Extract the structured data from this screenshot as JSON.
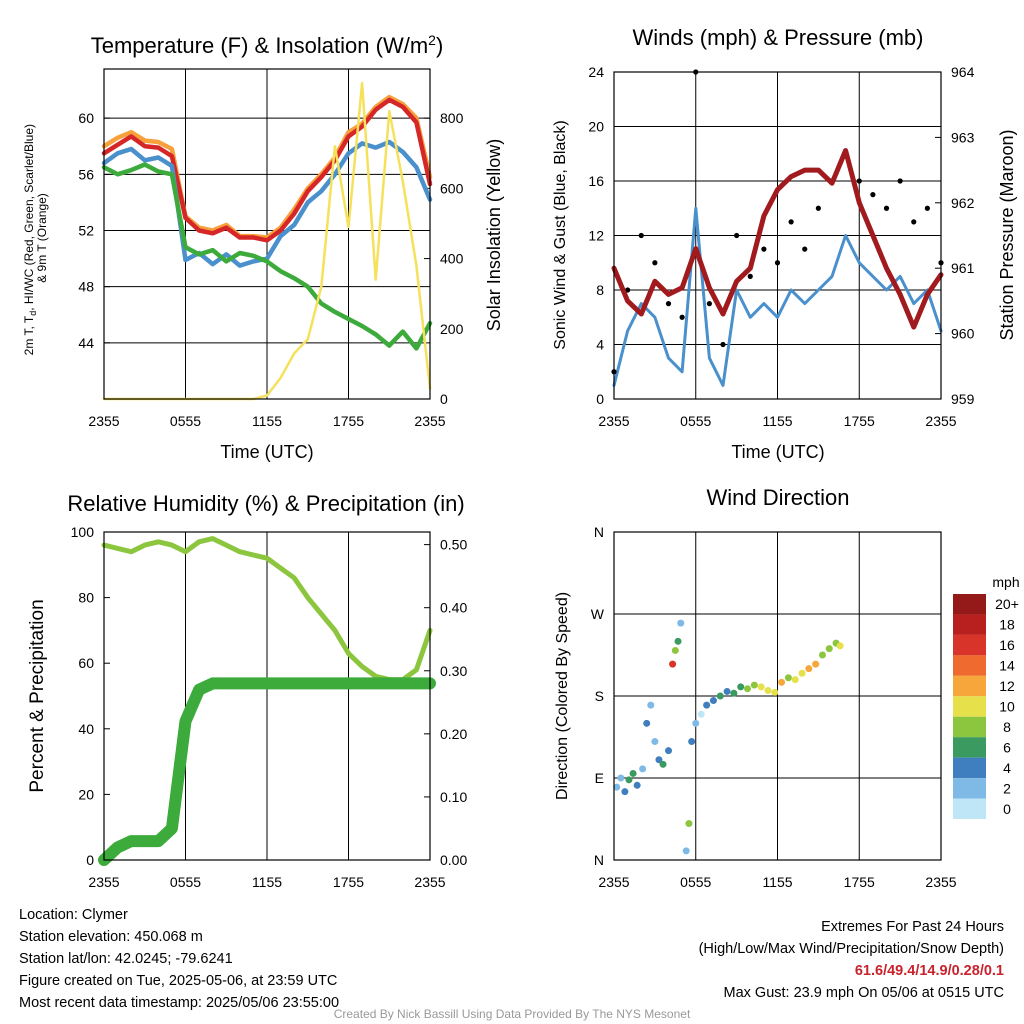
{
  "chart_data": [
    {
      "type": "line",
      "title": "Temperature (F) & Insolation (W/m²)",
      "xlabel": "Time (UTC)",
      "ylabel": "2m T, T_d, HI/WC (Red, Green, Scarlet/Blue) & 9m T (Orange)",
      "ylabel2": "Solar Insolation (Yellow)",
      "ylim": [
        40,
        63.5
      ],
      "ylim2": [
        0,
        940
      ],
      "yticks": [
        44,
        48,
        52,
        56,
        60
      ],
      "yticks2": [
        0,
        200,
        400,
        600,
        800
      ],
      "x_ticks": [
        "2355",
        "0555",
        "1155",
        "1755",
        "2355"
      ],
      "x": [
        0,
        1,
        2,
        3,
        4,
        5,
        6,
        7,
        8,
        9,
        10,
        11,
        12,
        13,
        14,
        15,
        16,
        17,
        18,
        19,
        20,
        21,
        22,
        23,
        24
      ],
      "series": [
        {
          "name": "9m T",
          "color": "#f7a03c",
          "values": [
            58,
            58.6,
            59,
            58.4,
            58.3,
            57.8,
            53,
            52.2,
            52,
            52.4,
            51.6,
            51.6,
            51.5,
            52.2,
            53.5,
            55,
            56,
            57.2,
            59,
            59.6,
            60.8,
            61.5,
            61,
            60,
            55.8
          ]
        },
        {
          "name": "2m T",
          "color": "#d62728",
          "values": [
            57.5,
            58.1,
            58.7,
            58,
            57.9,
            57.3,
            52.9,
            52,
            51.8,
            52.2,
            51.5,
            51.5,
            51.3,
            52,
            53.2,
            54.8,
            55.8,
            57,
            58.7,
            59.4,
            60.6,
            61.3,
            60.8,
            59.7,
            55.3
          ]
        },
        {
          "name": "HI/WC",
          "color": "#4a90cc",
          "values": [
            56.8,
            57.5,
            57.8,
            57,
            57.2,
            56.6,
            49.9,
            50.4,
            49.6,
            50.3,
            49.5,
            49.8,
            50,
            51.6,
            52.4,
            54,
            54.8,
            56,
            57.5,
            58.2,
            57.9,
            58.3,
            57.6,
            56.5,
            54.2
          ]
        },
        {
          "name": "2m Td",
          "color": "#3cab3c",
          "values": [
            56.5,
            56,
            56.3,
            56.7,
            56.2,
            56,
            50.8,
            50.3,
            50.6,
            49.8,
            50.4,
            50.2,
            49.8,
            49.1,
            48.6,
            48,
            46.8,
            46.2,
            45.7,
            45.2,
            44.6,
            43.8,
            44.8,
            43.6,
            45.4
          ]
        },
        {
          "name": "Solar Insolation",
          "color": "#f5e15c",
          "axis": "right",
          "values": [
            0,
            0,
            0,
            0,
            0,
            0,
            0,
            0,
            0,
            0,
            0,
            0,
            10,
            60,
            130,
            170,
            320,
            720,
            490,
            900,
            340,
            820,
            620,
            380,
            30
          ]
        }
      ]
    },
    {
      "type": "line",
      "title": "Winds (mph) & Pressure (mb)",
      "xlabel": "Time (UTC)",
      "ylabel": "Sonic Wind & Gust (Blue, Black)",
      "ylabel2": "Station Pressure (Maroon)",
      "ylim": [
        0,
        24
      ],
      "ylim2": [
        959,
        964
      ],
      "yticks": [
        0,
        4,
        8,
        12,
        16,
        20,
        24
      ],
      "yticks2": [
        959,
        960,
        961,
        962,
        963,
        964
      ],
      "x_ticks": [
        "2355",
        "0555",
        "1155",
        "1755",
        "2355"
      ],
      "x": [
        0,
        1,
        2,
        3,
        4,
        5,
        6,
        7,
        8,
        9,
        10,
        11,
        12,
        13,
        14,
        15,
        16,
        17,
        18,
        19,
        20,
        21,
        22,
        23,
        24
      ],
      "series": [
        {
          "name": "Sonic Wind",
          "color": "#4a90cc",
          "values": [
            1,
            5,
            7,
            6,
            3,
            2,
            14,
            3,
            1,
            8,
            6,
            7,
            6,
            8,
            7,
            8,
            9,
            12,
            10,
            9,
            8,
            9,
            7,
            8,
            5
          ]
        },
        {
          "name": "Gust",
          "color": "#000000",
          "values": [
            2,
            8,
            12,
            10,
            7,
            6,
            24,
            7,
            4,
            12,
            9,
            11,
            10,
            13,
            11,
            14,
            16,
            18,
            16,
            15,
            14,
            16,
            13,
            14,
            10
          ]
        },
        {
          "name": "Station Pressure",
          "color": "#a01a1e",
          "axis": "right",
          "values": [
            961,
            960.5,
            960.3,
            960.8,
            960.6,
            960.7,
            961.3,
            960.7,
            960.3,
            960.8,
            961,
            961.8,
            962.2,
            962.4,
            962.5,
            962.5,
            962.3,
            962.8,
            962,
            961.5,
            961,
            960.6,
            960.1,
            960.6,
            960.9
          ]
        }
      ]
    },
    {
      "type": "line",
      "title": "Relative Humidity (%) & Precipitation (in)",
      "xlabel": "",
      "ylabel": "Percent & Precipitation",
      "ylim": [
        0,
        100
      ],
      "ylim2": [
        0,
        0.52
      ],
      "yticks": [
        0,
        20,
        40,
        60,
        80,
        100
      ],
      "yticks2": [
        "0.00",
        "0.10",
        "0.20",
        "0.30",
        "0.40",
        "0.50"
      ],
      "x_ticks": [
        "2355",
        "0555",
        "1155",
        "1755",
        "2355"
      ],
      "x": [
        0,
        1,
        2,
        3,
        4,
        5,
        6,
        7,
        8,
        9,
        10,
        11,
        12,
        13,
        14,
        15,
        16,
        17,
        18,
        19,
        20,
        21,
        22,
        23,
        24
      ],
      "series": [
        {
          "name": "Relative Humidity",
          "color": "#8cc63f",
          "values": [
            96,
            95,
            94,
            96,
            97,
            96,
            94,
            97,
            98,
            96,
            94,
            93,
            92,
            89,
            86,
            80,
            75,
            70,
            63,
            59,
            56,
            55,
            55,
            58,
            70
          ]
        },
        {
          "name": "Precipitation",
          "color": "#3cab3c",
          "axis": "right",
          "values": [
            0,
            0.02,
            0.03,
            0.03,
            0.03,
            0.05,
            0.22,
            0.27,
            0.28,
            0.28,
            0.28,
            0.28,
            0.28,
            0.28,
            0.28,
            0.28,
            0.28,
            0.28,
            0.28,
            0.28,
            0.28,
            0.28,
            0.28,
            0.28,
            0.28
          ]
        }
      ]
    },
    {
      "type": "scatter",
      "title": "Wind Direction",
      "xlabel": "",
      "ylabel": "Direction (Colored By Speed)",
      "ylim": [
        0,
        360
      ],
      "yticks": [
        "N",
        "E",
        "S",
        "W",
        "N"
      ],
      "x_ticks": [
        "2355",
        "0555",
        "1155",
        "1755",
        "2355"
      ],
      "legend": {
        "title": "mph",
        "labels": [
          "0",
          "2",
          "4",
          "6",
          "8",
          "10",
          "12",
          "14",
          "16",
          "18",
          "20+"
        ],
        "colors": [
          "#bfe6f7",
          "#7fb9e6",
          "#3f7fbf",
          "#3a9a5f",
          "#8cc63f",
          "#e6e04a",
          "#f7a63c",
          "#ee6a2e",
          "#d8342a",
          "#b8201f",
          "#941a1a"
        ]
      },
      "points": [
        [
          0.2,
          80,
          3
        ],
        [
          0.5,
          90,
          3
        ],
        [
          0.8,
          75,
          4
        ],
        [
          1.1,
          88,
          6
        ],
        [
          1.4,
          95,
          7
        ],
        [
          1.7,
          82,
          5
        ],
        [
          2.1,
          100,
          3
        ],
        [
          2.4,
          150,
          4
        ],
        [
          2.7,
          170,
          2
        ],
        [
          3.0,
          130,
          3
        ],
        [
          3.3,
          110,
          4
        ],
        [
          3.6,
          105,
          6
        ],
        [
          4.0,
          120,
          5
        ],
        [
          4.3,
          215,
          16
        ],
        [
          4.5,
          230,
          8
        ],
        [
          4.7,
          240,
          7
        ],
        [
          4.9,
          260,
          2
        ],
        [
          5.3,
          10,
          2
        ],
        [
          5.5,
          40,
          8
        ],
        [
          5.7,
          130,
          4
        ],
        [
          6.0,
          150,
          3
        ],
        [
          6.4,
          160,
          1
        ],
        [
          6.8,
          170,
          4
        ],
        [
          7.3,
          175,
          5
        ],
        [
          7.8,
          180,
          6
        ],
        [
          8.3,
          185,
          4
        ],
        [
          8.8,
          183,
          7
        ],
        [
          9.3,
          190,
          7
        ],
        [
          9.8,
          188,
          8
        ],
        [
          10.3,
          192,
          8
        ],
        [
          10.8,
          190,
          10
        ],
        [
          11.3,
          186,
          11
        ],
        [
          11.8,
          184,
          10
        ],
        [
          12.3,
          195,
          12
        ],
        [
          12.8,
          200,
          9
        ],
        [
          13.3,
          198,
          10
        ],
        [
          13.8,
          205,
          10
        ],
        [
          14.3,
          210,
          12
        ],
        [
          14.8,
          215,
          12
        ],
        [
          15.3,
          225,
          8
        ],
        [
          15.8,
          232,
          8
        ],
        [
          16.3,
          238,
          9
        ],
        [
          16.6,
          235,
          10
        ]
      ]
    }
  ],
  "info": {
    "location": "Location: Clymer",
    "elevation": "Station elevation: 450.068 m",
    "latlon": "Station lat/lon: 42.0245; -79.6241",
    "created": "Figure created on Tue, 2025-05-06, at 23:59 UTC",
    "recent": "Most recent data timestamp: 2025/05/06 23:55:00"
  },
  "extremes": {
    "title": "Extremes For Past 24 Hours",
    "subtitle": "(High/Low/Max Wind/Precipitation/Snow Depth)",
    "values": "61.6/49.4/14.9/0.28/0.1",
    "max_gust": "Max Gust: 23.9 mph On 05/06 at 0515 UTC"
  },
  "credit": "Created By Nick Bassill Using Data Provided By The NYS Mesonet"
}
